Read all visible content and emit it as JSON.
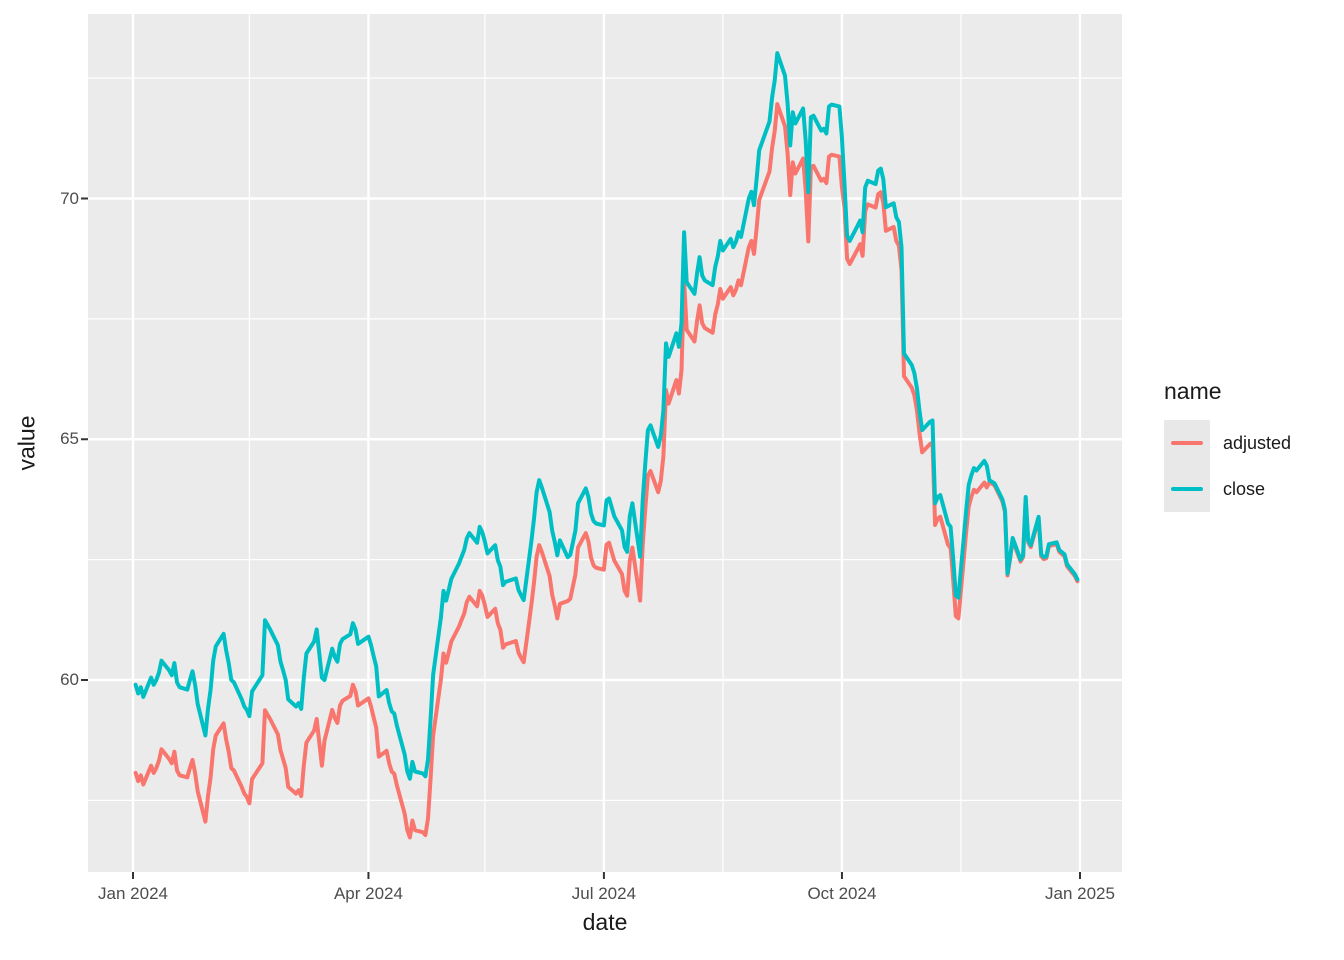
{
  "figure_type": "ggplot-line-chart",
  "x_axis": {
    "title": "date",
    "major_ticks": [
      {
        "label": "Jan 2024",
        "date": "2024-01-01"
      },
      {
        "label": "Apr 2024",
        "date": "2024-04-01"
      },
      {
        "label": "Jul 2024",
        "date": "2024-07-01"
      },
      {
        "label": "Oct 2024",
        "date": "2024-10-01"
      },
      {
        "label": "Jan 2025",
        "date": "2025-01-01"
      }
    ],
    "minor_dates": [
      "2024-02-15",
      "2024-05-16",
      "2024-08-16",
      "2024-11-16"
    ]
  },
  "y_axis": {
    "title": "value",
    "major_ticks": [
      {
        "label": "60",
        "value": 60
      },
      {
        "label": "65",
        "value": 65
      },
      {
        "label": "70",
        "value": 70
      }
    ],
    "minor_values": [
      57.5,
      62.5,
      67.5,
      72.5
    ]
  },
  "legend": {
    "title": "name",
    "items": [
      {
        "label": "adjusted",
        "color": "#F8766D"
      },
      {
        "label": "close",
        "color": "#00BFC4"
      }
    ]
  },
  "theme": {
    "panel_bg": "#EBEBEB",
    "grid_color": "#FFFFFF",
    "tick_mark_color": "#333333",
    "tick_label_color": "#4D4D4D",
    "title_color": "#1a1a1a",
    "legend_key_bg": "#E8E8E8"
  },
  "chart_data": {
    "type": "line",
    "xlabel": "date",
    "ylabel": "value",
    "x_domain": [
      "2023-12-14",
      "2025-01-18"
    ],
    "y_domain": [
      56.0,
      73.9
    ],
    "grid": true,
    "legend_position": "right",
    "dates": [
      "2024-01-02",
      "2024-01-03",
      "2024-01-04",
      "2024-01-05",
      "2024-01-08",
      "2024-01-09",
      "2024-01-10",
      "2024-01-11",
      "2024-01-12",
      "2024-01-15",
      "2024-01-16",
      "2024-01-17",
      "2024-01-18",
      "2024-01-19",
      "2024-01-22",
      "2024-01-23",
      "2024-01-24",
      "2024-01-25",
      "2024-01-26",
      "2024-01-29",
      "2024-01-30",
      "2024-01-31",
      "2024-02-01",
      "2024-02-02",
      "2024-02-05",
      "2024-02-06",
      "2024-02-07",
      "2024-02-08",
      "2024-02-09",
      "2024-02-12",
      "2024-02-13",
      "2024-02-14",
      "2024-02-15",
      "2024-02-16",
      "2024-02-20",
      "2024-02-21",
      "2024-02-22",
      "2024-02-23",
      "2024-02-26",
      "2024-02-27",
      "2024-02-28",
      "2024-02-29",
      "2024-03-01",
      "2024-03-04",
      "2024-03-05",
      "2024-03-06",
      "2024-03-07",
      "2024-03-08",
      "2024-03-11",
      "2024-03-12",
      "2024-03-13",
      "2024-03-14",
      "2024-03-15",
      "2024-03-18",
      "2024-03-19",
      "2024-03-20",
      "2024-03-21",
      "2024-03-22",
      "2024-03-25",
      "2024-03-26",
      "2024-03-27",
      "2024-03-28",
      "2024-04-01",
      "2024-04-02",
      "2024-04-03",
      "2024-04-04",
      "2024-04-05",
      "2024-04-08",
      "2024-04-09",
      "2024-04-10",
      "2024-04-11",
      "2024-04-12",
      "2024-04-15",
      "2024-04-16",
      "2024-04-17",
      "2024-04-18",
      "2024-04-19",
      "2024-04-22",
      "2024-04-23",
      "2024-04-24",
      "2024-04-25",
      "2024-04-26",
      "2024-04-29",
      "2024-04-30",
      "2024-05-01",
      "2024-05-02",
      "2024-05-03",
      "2024-05-06",
      "2024-05-07",
      "2024-05-08",
      "2024-05-09",
      "2024-05-10",
      "2024-05-13",
      "2024-05-14",
      "2024-05-15",
      "2024-05-16",
      "2024-05-17",
      "2024-05-20",
      "2024-05-21",
      "2024-05-22",
      "2024-05-23",
      "2024-05-24",
      "2024-05-28",
      "2024-05-29",
      "2024-05-30",
      "2024-05-31",
      "2024-06-03",
      "2024-06-04",
      "2024-06-05",
      "2024-06-06",
      "2024-06-07",
      "2024-06-10",
      "2024-06-11",
      "2024-06-12",
      "2024-06-13",
      "2024-06-14",
      "2024-06-17",
      "2024-06-18",
      "2024-06-20",
      "2024-06-21",
      "2024-06-24",
      "2024-06-25",
      "2024-06-26",
      "2024-06-27",
      "2024-06-28",
      "2024-07-01",
      "2024-07-02",
      "2024-07-03",
      "2024-07-05",
      "2024-07-08",
      "2024-07-09",
      "2024-07-10",
      "2024-07-11",
      "2024-07-12",
      "2024-07-15",
      "2024-07-16",
      "2024-07-17",
      "2024-07-18",
      "2024-07-19",
      "2024-07-22",
      "2024-07-23",
      "2024-07-24",
      "2024-07-25",
      "2024-07-26",
      "2024-07-29",
      "2024-07-30",
      "2024-07-31",
      "2024-08-01",
      "2024-08-02",
      "2024-08-05",
      "2024-08-06",
      "2024-08-07",
      "2024-08-08",
      "2024-08-09",
      "2024-08-12",
      "2024-08-13",
      "2024-08-14",
      "2024-08-15",
      "2024-08-16",
      "2024-08-19",
      "2024-08-20",
      "2024-08-21",
      "2024-08-22",
      "2024-08-23",
      "2024-08-26",
      "2024-08-27",
      "2024-08-28",
      "2024-08-29",
      "2024-08-30",
      "2024-09-03",
      "2024-09-04",
      "2024-09-05",
      "2024-09-06",
      "2024-09-09",
      "2024-09-10",
      "2024-09-11",
      "2024-09-12",
      "2024-09-13",
      "2024-09-16",
      "2024-09-17",
      "2024-09-18",
      "2024-09-19",
      "2024-09-20",
      "2024-09-23",
      "2024-09-24",
      "2024-09-25",
      "2024-09-26",
      "2024-09-27",
      "2024-09-30",
      "2024-10-01",
      "2024-10-02",
      "2024-10-03",
      "2024-10-04",
      "2024-10-07",
      "2024-10-08",
      "2024-10-09",
      "2024-10-10",
      "2024-10-11",
      "2024-10-14",
      "2024-10-15",
      "2024-10-16",
      "2024-10-17",
      "2024-10-18",
      "2024-10-21",
      "2024-10-22",
      "2024-10-23",
      "2024-10-24",
      "2024-10-25",
      "2024-10-28",
      "2024-10-29",
      "2024-10-30",
      "2024-10-31",
      "2024-11-01",
      "2024-11-04",
      "2024-11-05",
      "2024-11-06",
      "2024-11-07",
      "2024-11-08",
      "2024-11-11",
      "2024-11-12",
      "2024-11-13",
      "2024-11-14",
      "2024-11-15",
      "2024-11-18",
      "2024-11-19",
      "2024-11-20",
      "2024-11-21",
      "2024-11-22",
      "2024-11-25",
      "2024-11-26",
      "2024-11-27",
      "2024-11-29",
      "2024-12-02",
      "2024-12-03",
      "2024-12-04",
      "2024-12-05",
      "2024-12-06",
      "2024-12-09",
      "2024-12-10",
      "2024-12-11",
      "2024-12-12",
      "2024-12-13",
      "2024-12-16",
      "2024-12-17",
      "2024-12-18",
      "2024-12-19",
      "2024-12-20",
      "2024-12-23",
      "2024-12-24",
      "2024-12-26",
      "2024-12-27",
      "2024-12-30",
      "2024-12-31"
    ],
    "series": [
      {
        "name": "adjusted",
        "color": "#F8766D",
        "values": [
          58.07,
          57.9,
          58.02,
          57.83,
          58.22,
          58.07,
          58.17,
          58.32,
          58.56,
          58.36,
          58.27,
          58.51,
          58.12,
          58.02,
          57.98,
          58.17,
          58.34,
          58.07,
          57.69,
          57.06,
          57.59,
          57.98,
          58.56,
          58.85,
          59.1,
          58.77,
          58.51,
          58.17,
          58.12,
          57.78,
          57.64,
          57.57,
          57.44,
          57.94,
          58.27,
          59.37,
          59.28,
          59.19,
          58.87,
          58.54,
          58.36,
          58.17,
          57.78,
          57.64,
          57.71,
          57.59,
          58.22,
          58.7,
          58.95,
          59.19,
          58.7,
          58.22,
          58.74,
          59.38,
          59.21,
          59.11,
          59.47,
          59.57,
          59.67,
          59.9,
          59.77,
          59.47,
          59.62,
          59.45,
          59.23,
          59.01,
          58.41,
          58.53,
          58.27,
          58.1,
          58.05,
          57.81,
          57.22,
          56.88,
          56.73,
          57.08,
          56.88,
          56.84,
          56.78,
          57.12,
          57.96,
          58.84,
          60.01,
          60.55,
          60.36,
          60.57,
          60.8,
          61.11,
          61.25,
          61.38,
          61.62,
          61.73,
          61.53,
          61.85,
          61.75,
          61.55,
          61.31,
          61.48,
          61.18,
          61.04,
          60.67,
          60.74,
          60.81,
          60.57,
          60.46,
          60.37,
          61.58,
          62.02,
          62.56,
          62.8,
          62.66,
          62.16,
          61.77,
          61.55,
          61.28,
          61.58,
          61.64,
          61.69,
          62.19,
          62.75,
          63.05,
          62.88,
          62.54,
          62.38,
          62.33,
          62.29,
          62.81,
          62.85,
          62.48,
          62.2,
          61.85,
          61.75,
          62.48,
          62.75,
          61.65,
          62.81,
          63.56,
          64.24,
          64.34,
          63.9,
          64.14,
          64.65,
          66.02,
          65.74,
          66.23,
          65.95,
          66.43,
          68.3,
          67.27,
          67.03,
          67.46,
          67.78,
          67.41,
          67.31,
          67.21,
          67.59,
          67.8,
          68.12,
          67.92,
          68.16,
          67.99,
          68.1,
          68.3,
          68.2,
          68.99,
          69.12,
          68.85,
          69.38,
          69.97,
          70.56,
          71.05,
          71.4,
          71.96,
          71.5,
          70.93,
          70.07,
          70.75,
          70.52,
          70.83,
          70.17,
          69.11,
          70.65,
          70.68,
          70.37,
          70.41,
          70.32,
          70.87,
          70.91,
          70.87,
          70.24,
          69.81,
          68.75,
          68.64,
          68.94,
          69.05,
          68.81,
          69.74,
          69.88,
          69.81,
          70.09,
          70.13,
          69.91,
          69.33,
          69.41,
          69.12,
          69.02,
          68.51,
          66.31,
          66.07,
          65.91,
          65.59,
          65.11,
          64.73,
          64.9,
          64.93,
          63.22,
          63.35,
          63.39,
          62.81,
          62.74,
          62.08,
          61.33,
          61.28,
          63.06,
          63.6,
          63.8,
          63.95,
          63.9,
          64.1,
          64.0,
          64.11,
          64.04,
          63.71,
          63.49,
          62.17,
          62.51,
          62.91,
          62.46,
          62.55,
          63.76,
          62.86,
          62.76,
          63.35,
          62.57,
          62.51,
          62.53,
          62.78,
          62.82,
          62.66,
          62.57,
          62.36,
          62.16,
          62.05
        ]
      },
      {
        "name": "close",
        "color": "#00BFC4",
        "values": [
          59.9,
          59.72,
          59.85,
          59.65,
          60.05,
          59.9,
          60.0,
          60.15,
          60.4,
          60.2,
          60.1,
          60.35,
          59.95,
          59.85,
          59.8,
          60.0,
          60.18,
          59.9,
          59.5,
          58.85,
          59.4,
          59.8,
          60.4,
          60.7,
          60.96,
          60.62,
          60.35,
          60.0,
          59.95,
          59.6,
          59.45,
          59.38,
          59.25,
          59.76,
          60.1,
          61.24,
          61.15,
          61.05,
          60.72,
          60.38,
          60.2,
          60.0,
          59.6,
          59.45,
          59.52,
          59.4,
          60.05,
          60.55,
          60.8,
          61.05,
          60.55,
          60.05,
          60.0,
          60.65,
          60.48,
          60.38,
          60.75,
          60.85,
          60.95,
          61.18,
          61.05,
          60.75,
          60.9,
          60.73,
          60.5,
          60.28,
          59.66,
          59.79,
          59.52,
          59.35,
          59.3,
          59.05,
          58.45,
          58.1,
          57.95,
          58.3,
          58.1,
          58.06,
          58.0,
          58.35,
          59.2,
          60.1,
          61.3,
          61.85,
          61.65,
          61.87,
          62.1,
          62.42,
          62.56,
          62.7,
          62.94,
          63.05,
          62.85,
          63.18,
          63.07,
          62.87,
          62.63,
          62.8,
          62.49,
          62.35,
          61.97,
          62.04,
          62.11,
          61.87,
          61.76,
          61.66,
          62.9,
          63.35,
          63.9,
          64.15,
          64.0,
          63.49,
          63.1,
          62.87,
          62.59,
          62.9,
          62.55,
          62.6,
          63.1,
          63.67,
          63.98,
          63.8,
          63.46,
          63.3,
          63.25,
          63.21,
          63.73,
          63.77,
          63.4,
          63.11,
          62.76,
          62.66,
          63.4,
          63.67,
          62.56,
          63.73,
          64.5,
          65.19,
          65.29,
          64.84,
          65.08,
          65.6,
          66.99,
          66.71,
          67.2,
          66.92,
          67.41,
          69.3,
          68.26,
          68.02,
          68.45,
          68.78,
          68.4,
          68.3,
          68.2,
          68.58,
          68.8,
          69.12,
          68.92,
          69.16,
          68.99,
          69.1,
          69.3,
          69.2,
          70.0,
          70.14,
          69.86,
          70.4,
          71.0,
          71.6,
          72.1,
          72.45,
          73.02,
          72.55,
          71.97,
          71.1,
          71.79,
          71.56,
          71.87,
          71.2,
          70.13,
          71.69,
          71.72,
          71.41,
          71.45,
          71.35,
          71.91,
          71.95,
          71.91,
          71.27,
          70.3,
          69.23,
          69.12,
          69.43,
          69.54,
          69.3,
          70.23,
          70.37,
          70.3,
          70.58,
          70.62,
          70.4,
          69.82,
          69.9,
          69.61,
          69.51,
          68.99,
          66.78,
          66.54,
          66.37,
          66.05,
          65.57,
          65.19,
          65.36,
          65.39,
          63.67,
          63.8,
          63.84,
          63.25,
          63.18,
          62.52,
          61.76,
          61.71,
          63.5,
          64.05,
          64.25,
          64.4,
          64.35,
          64.55,
          64.45,
          64.15,
          64.08,
          63.75,
          63.53,
          62.21,
          62.55,
          62.95,
          62.5,
          62.59,
          63.8,
          62.9,
          62.8,
          63.39,
          62.61,
          62.55,
          62.57,
          62.82,
          62.86,
          62.7,
          62.61,
          62.4,
          62.2,
          62.09
        ]
      }
    ]
  }
}
